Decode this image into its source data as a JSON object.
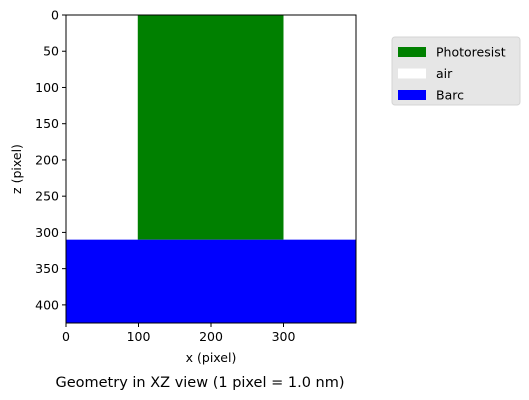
{
  "chart_data": {
    "type": "heatmap",
    "caption": "Geometry in XZ view (1 pixel = 1.0 nm)",
    "xlabel": "x (pixel)",
    "ylabel": "z (pixel)",
    "xlim": [
      0,
      400
    ],
    "ylim": [
      0,
      425
    ],
    "y_inverted": true,
    "x_ticks": [
      0,
      100,
      200,
      300
    ],
    "y_ticks": [
      0,
      50,
      100,
      150,
      200,
      250,
      300,
      350,
      400
    ],
    "grid": false,
    "legend_position": "outside-right",
    "legend": [
      {
        "label": "Photoresist",
        "color": "#008000"
      },
      {
        "label": "air",
        "color": "#ffffff"
      },
      {
        "label": "Barc",
        "color": "#0000ff"
      }
    ],
    "regions": [
      {
        "material": "air",
        "x": [
          0,
          400
        ],
        "z": [
          0,
          310
        ],
        "color": "#ffffff"
      },
      {
        "material": "Photoresist",
        "x": [
          99,
          300
        ],
        "z": [
          0,
          310
        ],
        "color": "#008000"
      },
      {
        "material": "Barc",
        "x": [
          0,
          400
        ],
        "z": [
          310,
          425
        ],
        "color": "#0000ff"
      }
    ]
  }
}
